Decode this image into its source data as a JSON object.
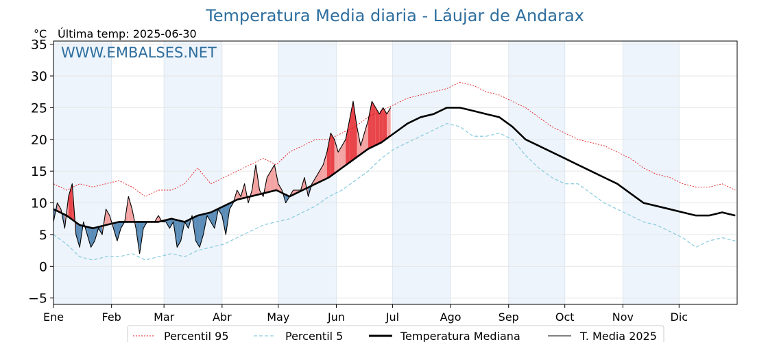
{
  "header": {
    "title": "Temperatura Media diaria - Láujar de Andarax",
    "unit": "°C",
    "last_temp": "Última temp: 2025-06-30",
    "watermark": "WWW.EMBALSES.NET"
  },
  "legend": {
    "p95": "Percentil 95",
    "p5": "Percentil 5",
    "median": "Temperatura Mediana",
    "current": "T. Media 2025"
  },
  "colors": {
    "p95": "#e31a1c",
    "p5": "#8ecde0",
    "median": "#000000",
    "current": "#000000",
    "above": "#f4a3a3",
    "above_extreme": "#e8454a",
    "below": "#5b8db8",
    "band": "#eef4fb",
    "title": "#2e6e9e"
  },
  "chart_data": {
    "type": "line",
    "title": "Temperatura Media diaria - Láujar de Andarax",
    "ylabel": "°C",
    "ylim": [
      -6,
      35.5
    ],
    "xlim": [
      1,
      366
    ],
    "yticks": [
      -5,
      0,
      5,
      10,
      15,
      20,
      25,
      30,
      35
    ],
    "ytick_labels": [
      "−5",
      "0",
      "5",
      "10",
      "15",
      "20",
      "25",
      "30",
      "35"
    ],
    "month_labels": [
      "Ene",
      "Feb",
      "Mar",
      "Abr",
      "May",
      "Jun",
      "Jul",
      "Ago",
      "Sep",
      "Oct",
      "Nov",
      "Dic"
    ],
    "month_starts": [
      1,
      32,
      60,
      91,
      121,
      152,
      182,
      213,
      244,
      274,
      305,
      335
    ],
    "grid": true,
    "legend_position": "bottom",
    "series": [
      {
        "name": "Percentil 95",
        "style": "dotted",
        "x": [
          1,
          8,
          15,
          22,
          29,
          36,
          43,
          50,
          57,
          64,
          71,
          78,
          85,
          92,
          99,
          106,
          113,
          120,
          127,
          134,
          141,
          148,
          155,
          162,
          169,
          176,
          183,
          190,
          197,
          204,
          211,
          218,
          225,
          232,
          239,
          246,
          253,
          260,
          267,
          274,
          281,
          288,
          295,
          302,
          309,
          316,
          323,
          330,
          337,
          344,
          351,
          358,
          365
        ],
        "y": [
          13,
          12,
          13,
          12.5,
          13,
          13.5,
          12.5,
          11,
          12,
          12,
          13,
          15.5,
          13,
          14,
          15,
          16,
          17,
          16,
          18,
          19,
          20,
          20,
          21,
          22,
          23.5,
          24.5,
          25.5,
          26.5,
          27,
          27.5,
          28,
          29,
          28.5,
          27.5,
          27,
          26,
          25,
          23.5,
          22,
          21,
          20,
          19.5,
          19,
          18,
          17,
          15.5,
          14.5,
          14,
          13,
          12.5,
          12.5,
          13,
          12
        ]
      },
      {
        "name": "Percentil 5",
        "style": "dashed",
        "x": [
          1,
          8,
          15,
          22,
          29,
          36,
          43,
          50,
          57,
          64,
          71,
          78,
          85,
          92,
          99,
          106,
          113,
          120,
          127,
          134,
          141,
          148,
          155,
          162,
          169,
          176,
          183,
          190,
          197,
          204,
          211,
          218,
          225,
          232,
          239,
          246,
          253,
          260,
          267,
          274,
          281,
          288,
          295,
          302,
          309,
          316,
          323,
          330,
          337,
          344,
          351,
          358,
          365
        ],
        "y": [
          5,
          3.5,
          1.5,
          1,
          1.5,
          1.5,
          2,
          1,
          1.5,
          2,
          1.5,
          2.5,
          3,
          3.5,
          4.5,
          5.5,
          6.5,
          7,
          7.5,
          8.5,
          9.5,
          11,
          12,
          13.5,
          15,
          17,
          18.5,
          19.5,
          20.5,
          21.5,
          22.5,
          22,
          20.5,
          20.5,
          21,
          20,
          17.5,
          15.5,
          14,
          13,
          13,
          11.5,
          10,
          9,
          8,
          7,
          6.5,
          5.5,
          4.5,
          3,
          4,
          4.5,
          4
        ]
      },
      {
        "name": "Temperatura Mediana",
        "style": "solid-thick",
        "x": [
          1,
          8,
          15,
          22,
          29,
          36,
          43,
          50,
          57,
          64,
          71,
          78,
          85,
          92,
          99,
          106,
          113,
          120,
          127,
          134,
          141,
          148,
          155,
          162,
          169,
          176,
          183,
          190,
          197,
          204,
          211,
          218,
          225,
          232,
          239,
          246,
          253,
          260,
          267,
          274,
          281,
          288,
          295,
          302,
          309,
          316,
          323,
          330,
          337,
          344,
          351,
          358,
          365
        ],
        "y": [
          9,
          8,
          6.5,
          6,
          6.5,
          7,
          7,
          7,
          7,
          7.5,
          7,
          8,
          8.5,
          9.5,
          10.5,
          11,
          11.5,
          12,
          11,
          12,
          13,
          14,
          15.5,
          17,
          18.5,
          19.5,
          21,
          22.5,
          23.5,
          24,
          25,
          25,
          24.5,
          24,
          23.5,
          22,
          20,
          19,
          18,
          17,
          16,
          15,
          14,
          13,
          11.5,
          10,
          9.5,
          9,
          8.5,
          8,
          8,
          8.5,
          8
        ]
      },
      {
        "name": "T. Media 2025",
        "style": "solid",
        "x": [
          1,
          3,
          5,
          7,
          9,
          11,
          13,
          15,
          17,
          19,
          21,
          23,
          25,
          27,
          29,
          31,
          33,
          35,
          37,
          39,
          41,
          43,
          45,
          47,
          49,
          51,
          53,
          55,
          57,
          59,
          61,
          63,
          65,
          67,
          69,
          71,
          73,
          75,
          77,
          79,
          81,
          83,
          85,
          87,
          89,
          91,
          93,
          95,
          97,
          99,
          101,
          103,
          105,
          107,
          109,
          111,
          113,
          115,
          117,
          119,
          121,
          123,
          125,
          127,
          129,
          131,
          133,
          135,
          137,
          139,
          141,
          143,
          145,
          147,
          149,
          151,
          153,
          155,
          157,
          159,
          161,
          163,
          165,
          167,
          169,
          171,
          173,
          175,
          177,
          179,
          181
        ],
        "y": [
          7,
          10,
          9,
          6,
          11,
          13,
          5,
          3,
          7,
          5,
          3,
          4,
          6,
          5,
          9,
          8,
          6,
          4,
          6,
          7,
          11,
          9,
          6,
          2,
          6,
          7,
          7,
          7,
          8,
          7,
          7,
          6,
          7,
          3,
          4,
          7,
          6,
          8,
          4,
          3,
          5,
          8,
          7,
          6,
          9,
          8,
          5,
          9,
          10,
          12,
          11,
          13,
          10,
          12,
          16,
          12,
          11,
          14,
          15,
          16,
          13,
          12,
          10,
          11,
          12,
          12,
          12,
          14,
          11,
          13,
          14,
          15,
          16,
          18,
          21,
          20,
          18,
          19,
          20,
          23,
          26,
          22,
          19,
          21,
          23,
          26,
          25,
          24,
          25,
          24,
          25
        ]
      }
    ]
  }
}
